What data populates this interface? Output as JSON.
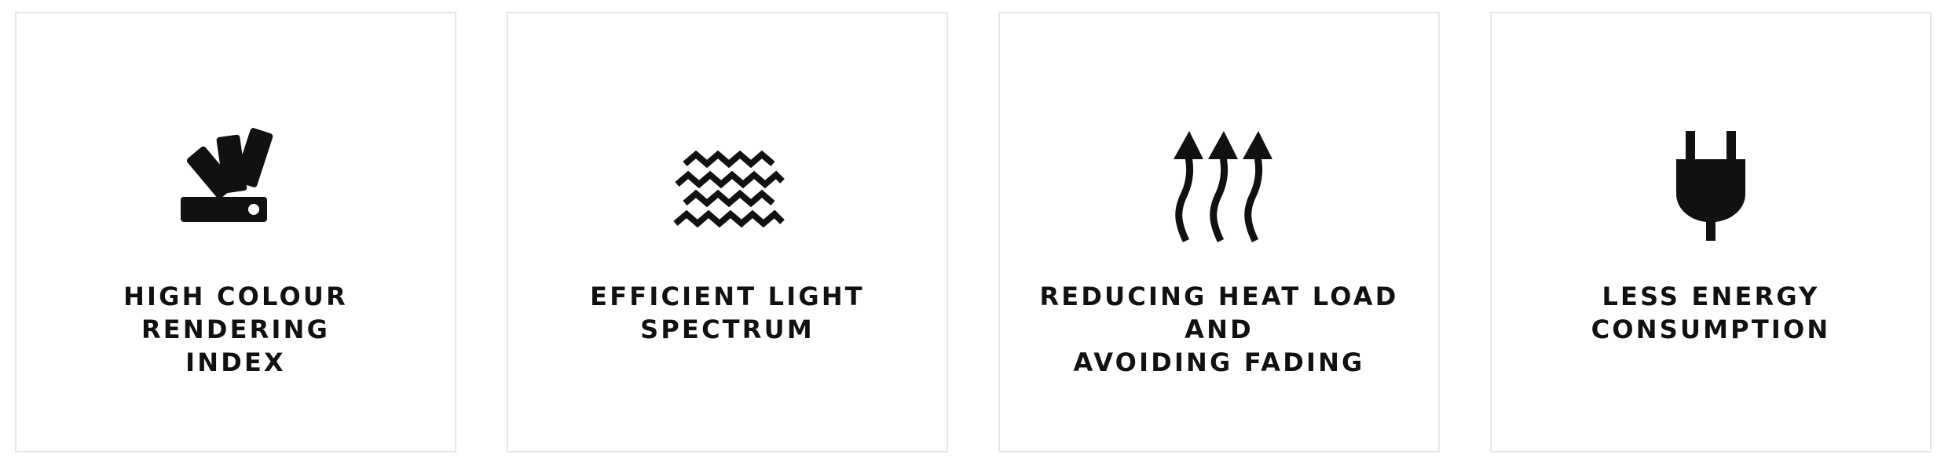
{
  "features": [
    {
      "label": "HIGH COLOUR RENDERING\nINDEX",
      "icon": "colour-swatch-icon"
    },
    {
      "label": "EFFICIENT LIGHT SPECTRUM",
      "icon": "waves-icon"
    },
    {
      "label": "REDUCING HEAT LOAD AND\nAVOIDING FADING",
      "icon": "heat-arrows-icon"
    },
    {
      "label": "LESS ENERGY\nCONSUMPTION",
      "icon": "plug-icon"
    }
  ]
}
